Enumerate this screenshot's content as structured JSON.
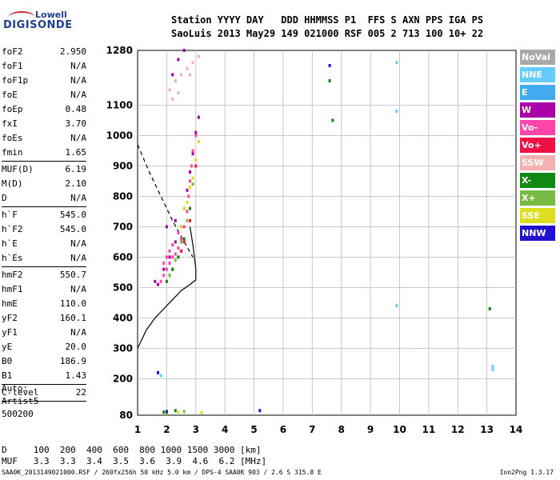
{
  "logo": {
    "line1": "Lowell",
    "line2": "DIGISONDE"
  },
  "header": {
    "line1": "Station YYYY DAY   DDD HHMMSS P1  FFS S AXN PPS IGA PS",
    "line2": "SaoLuis 2013 May29 149 021000 RSF 005 2 713 100 10+ 22"
  },
  "params": [
    {
      "k": "foF2",
      "v": "2.950"
    },
    {
      "k": "foF1",
      "v": "N/A"
    },
    {
      "k": "foF1p",
      "v": "N/A"
    },
    {
      "k": "foE",
      "v": "N/A"
    },
    {
      "k": "foEp",
      "v": "0.48"
    },
    {
      "k": "fxI",
      "v": "3.70"
    },
    {
      "k": "foEs",
      "v": "N/A"
    },
    {
      "k": "fmin",
      "v": "1.65"
    },
    {
      "sep": true
    },
    {
      "k": "MUF(D)",
      "v": "6.19"
    },
    {
      "k": "M(D)",
      "v": "2.10"
    },
    {
      "k": "D",
      "v": "N/A"
    },
    {
      "sep": true
    },
    {
      "k": "h`F",
      "v": "545.0"
    },
    {
      "k": "h`F2",
      "v": "545.0"
    },
    {
      "k": "h`E",
      "v": "N/A"
    },
    {
      "k": "h`Es",
      "v": "N/A"
    },
    {
      "sep": true
    },
    {
      "k": "hmF2",
      "v": "550.7"
    },
    {
      "k": "hmF1",
      "v": "N/A"
    },
    {
      "k": "hmE",
      "v": "110.0"
    },
    {
      "k": "yF2",
      "v": "160.1"
    },
    {
      "k": "yF1",
      "v": "N/A"
    },
    {
      "k": "yE",
      "v": "20.0"
    },
    {
      "k": "B0",
      "v": "186.9"
    },
    {
      "k": "B1",
      "v": "1.43"
    },
    {
      "sep": true
    },
    {
      "k": "C-level",
      "v": "22"
    },
    {
      "sep": true
    }
  ],
  "auto": {
    "line1": "Auto:",
    "line2": "Artist5",
    "line3": "500200"
  },
  "muf_table": {
    "d_label": "D",
    "d_values": [
      "100",
      "200",
      "400",
      "600",
      "800",
      "1000",
      "1500",
      "3000"
    ],
    "d_unit": "[km]",
    "muf_label": "MUF",
    "muf_values": [
      "3.3",
      "3.3",
      "3.4",
      "3.5",
      "3.6",
      "3.9",
      "4.6",
      "6.2"
    ],
    "muf_unit": "[MHz]"
  },
  "footer": {
    "left": "SAA0K_2013149021000.RSF / 260fx256h 50 kHz 5.0 km / DPS-4 SAA0K 903 / 2.6 S 315.8 E",
    "right": "Ion2Png 1.3.17"
  },
  "legend": [
    {
      "label": "NoVal",
      "color": "#a8a8a8"
    },
    {
      "label": "NNE",
      "color": "#66ccff"
    },
    {
      "label": "E",
      "color": "#44aaee"
    },
    {
      "label": "W",
      "color": "#aa00aa"
    },
    {
      "label": "Vo-",
      "color": "#ff44aa"
    },
    {
      "label": "Vo+",
      "color": "#ee1144"
    },
    {
      "label": "SSW",
      "color": "#f5b0b0"
    },
    {
      "label": "X-",
      "color": "#118811"
    },
    {
      "label": "X+",
      "color": "#77bb44"
    },
    {
      "label": "SSE",
      "color": "#dddd22"
    },
    {
      "label": "NNW",
      "color": "#2211cc"
    }
  ],
  "chart_data": {
    "type": "scatter",
    "title": "",
    "xlabel": "",
    "ylabel": "",
    "xlim": [
      1,
      14
    ],
    "ylim": [
      80,
      1280
    ],
    "xticks": [
      "1",
      "2",
      "3",
      "4",
      "5",
      "6",
      "7",
      "8",
      "9",
      "10",
      "11",
      "12",
      "13",
      "14"
    ],
    "yticks": [
      "80",
      "200",
      "300",
      "400",
      "500",
      "600",
      "700",
      "800",
      "900",
      "1000",
      "1100",
      "1280"
    ],
    "grid": true,
    "series": [
      {
        "name": "Vo-",
        "color": "#ff44aa",
        "points": [
          [
            1.8,
            520
          ],
          [
            1.9,
            540
          ],
          [
            2.0,
            560
          ],
          [
            2.1,
            580
          ],
          [
            2.2,
            600
          ],
          [
            2.3,
            610
          ],
          [
            2.4,
            630
          ],
          [
            2.5,
            660
          ],
          [
            2.6,
            700
          ],
          [
            2.7,
            750
          ],
          [
            2.75,
            800
          ],
          [
            2.8,
            850
          ],
          [
            2.85,
            900
          ],
          [
            2.9,
            950
          ],
          [
            3.0,
            1000
          ],
          [
            2.0,
            600
          ],
          [
            2.2,
            640
          ],
          [
            2.4,
            680
          ],
          [
            1.9,
            580
          ],
          [
            2.1,
            620
          ]
        ]
      },
      {
        "name": "W",
        "color": "#aa00aa",
        "points": [
          [
            1.7,
            510
          ],
          [
            1.9,
            560
          ],
          [
            2.1,
            600
          ],
          [
            2.3,
            650
          ],
          [
            2.5,
            700
          ],
          [
            2.6,
            760
          ],
          [
            2.7,
            820
          ],
          [
            2.8,
            880
          ],
          [
            2.9,
            940
          ],
          [
            3.0,
            1010
          ],
          [
            3.1,
            1060
          ],
          [
            2.2,
            1200
          ],
          [
            2.4,
            1250
          ],
          [
            2.6,
            1280
          ],
          [
            2.0,
            700
          ],
          [
            1.6,
            520
          ],
          [
            2.3,
            720
          ]
        ]
      },
      {
        "name": "Vo+",
        "color": "#ee1144",
        "points": [
          [
            2.2,
            560
          ],
          [
            2.4,
            600
          ],
          [
            2.6,
            650
          ],
          [
            2.8,
            720
          ],
          [
            3.0,
            900
          ],
          [
            2.1,
            540
          ],
          [
            2.5,
            620
          ]
        ]
      },
      {
        "name": "SSW",
        "color": "#f5b0b0",
        "points": [
          [
            2.1,
            1150
          ],
          [
            2.3,
            1180
          ],
          [
            2.5,
            1200
          ],
          [
            2.7,
            1220
          ],
          [
            2.9,
            1240
          ],
          [
            3.1,
            1260
          ],
          [
            2.2,
            1120
          ],
          [
            2.4,
            1140
          ],
          [
            2.8,
            1200
          ]
        ]
      },
      {
        "name": "X-",
        "color": "#118811",
        "points": [
          [
            2.0,
            520
          ],
          [
            2.2,
            560
          ],
          [
            2.4,
            600
          ],
          [
            2.6,
            660
          ],
          [
            2.8,
            760
          ],
          [
            7.6,
            1180
          ],
          [
            7.7,
            1050
          ],
          [
            13.1,
            430
          ],
          [
            1.9,
            90
          ],
          [
            2.3,
            95
          ]
        ]
      },
      {
        "name": "X+",
        "color": "#77bb44",
        "points": [
          [
            2.1,
            540
          ],
          [
            2.3,
            590
          ],
          [
            2.5,
            650
          ],
          [
            2.7,
            720
          ],
          [
            2.9,
            840
          ],
          [
            2.0,
            85
          ],
          [
            2.6,
            92
          ]
        ]
      },
      {
        "name": "SSE",
        "color": "#dddd22",
        "points": [
          [
            2.5,
            700
          ],
          [
            2.7,
            780
          ],
          [
            2.9,
            860
          ],
          [
            3.0,
            920
          ],
          [
            3.1,
            980
          ],
          [
            2.6,
            760
          ],
          [
            2.8,
            830
          ],
          [
            2.4,
            90
          ],
          [
            3.2,
            88
          ]
        ]
      },
      {
        "name": "NNE",
        "color": "#66ccff",
        "points": [
          [
            9.9,
            1240
          ],
          [
            9.9,
            1080
          ],
          [
            9.9,
            440
          ],
          [
            13.2,
            240
          ],
          [
            13.2,
            230
          ],
          [
            1.8,
            210
          ]
        ]
      },
      {
        "name": "NNW",
        "color": "#2211cc",
        "points": [
          [
            7.6,
            1230
          ],
          [
            5.2,
            95
          ],
          [
            1.7,
            220
          ],
          [
            2.0,
            92
          ]
        ]
      }
    ],
    "lines": [
      {
        "name": "profile",
        "style": "solid",
        "points": [
          [
            1.0,
            300
          ],
          [
            1.3,
            360
          ],
          [
            1.6,
            400
          ],
          [
            1.9,
            430
          ],
          [
            2.2,
            460
          ],
          [
            2.5,
            490
          ],
          [
            2.8,
            510
          ],
          [
            3.0,
            525
          ],
          [
            3.0,
            560
          ],
          [
            2.95,
            600
          ],
          [
            2.9,
            640
          ],
          [
            2.8,
            700
          ]
        ]
      },
      {
        "name": "extrapolation",
        "style": "dashed",
        "points": [
          [
            1.0,
            970
          ],
          [
            1.4,
            880
          ],
          [
            1.8,
            800
          ],
          [
            2.2,
            720
          ],
          [
            2.6,
            650
          ],
          [
            2.9,
            600
          ]
        ]
      }
    ]
  }
}
